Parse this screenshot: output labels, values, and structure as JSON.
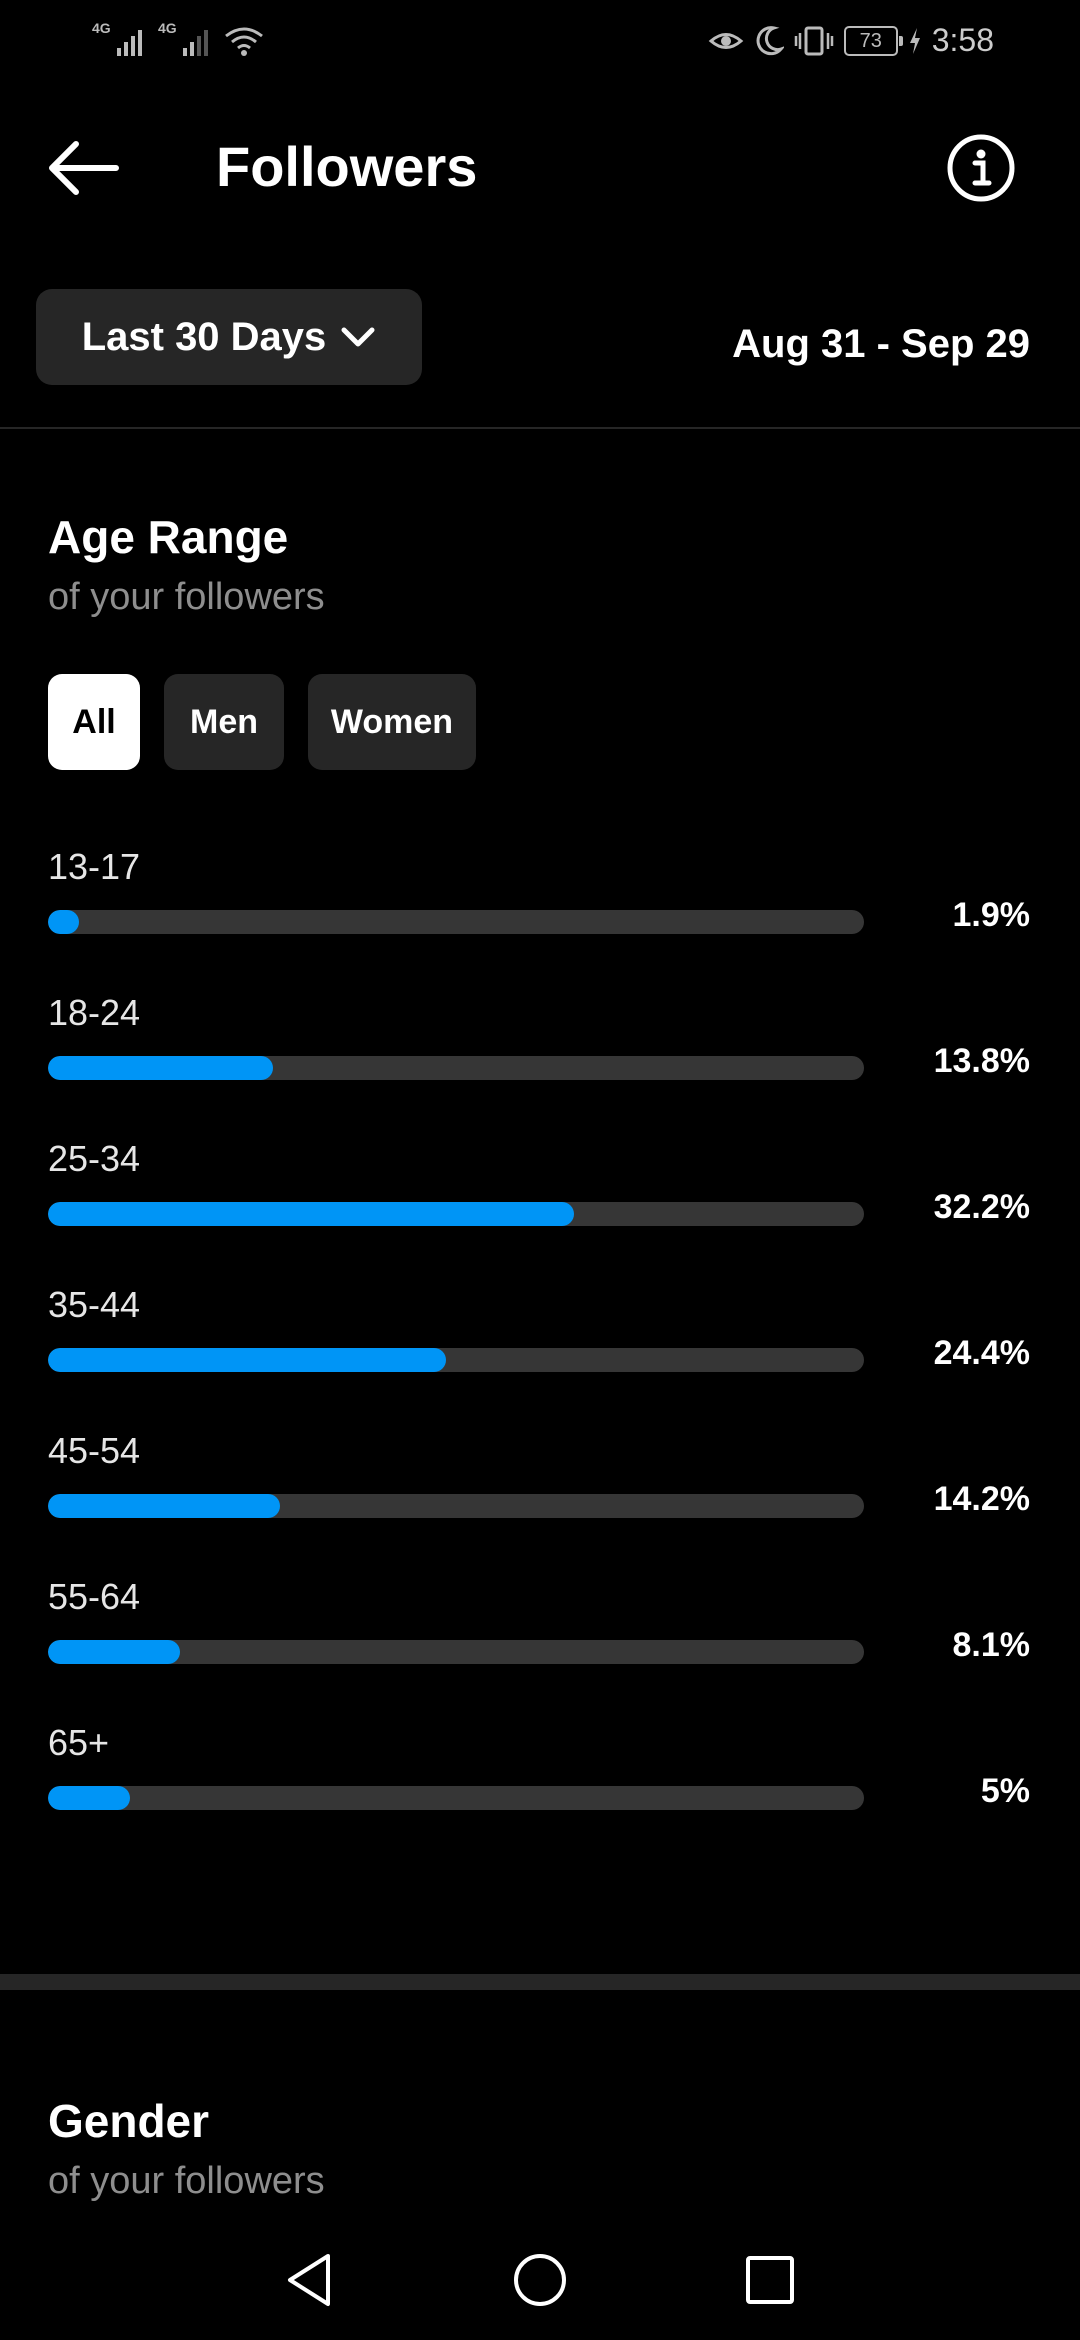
{
  "status_bar": {
    "signal1_label": "4G",
    "signal2_label": "4G",
    "battery": "73",
    "time": "3:58"
  },
  "header": {
    "title": "Followers",
    "back_icon": "arrow-left-icon",
    "info_icon": "info-circle-icon"
  },
  "filter": {
    "range_label": "Last 30 Days",
    "date_range": "Aug 31 - Sep 29"
  },
  "age_section": {
    "title": "Age Range",
    "subtitle": "of your followers",
    "tabs": [
      {
        "label": "All",
        "active": true
      },
      {
        "label": "Men",
        "active": false
      },
      {
        "label": "Women",
        "active": false
      }
    ],
    "rows": [
      {
        "label": "13-17",
        "value": "1.9%",
        "fill_fraction": 0.019
      },
      {
        "label": "18-24",
        "value": "13.8%",
        "fill_fraction": 0.138
      },
      {
        "label": "25-34",
        "value": "32.2%",
        "fill_fraction": 0.322
      },
      {
        "label": "35-44",
        "value": "24.4%",
        "fill_fraction": 0.244
      },
      {
        "label": "45-54",
        "value": "14.2%",
        "fill_fraction": 0.142
      },
      {
        "label": "55-64",
        "value": "8.1%",
        "fill_fraction": 0.081
      },
      {
        "label": "65+",
        "value": "5%",
        "fill_fraction": 0.05
      }
    ]
  },
  "gender_section": {
    "title": "Gender",
    "subtitle": "of your followers"
  },
  "colors": {
    "background": "#000000",
    "bar_fill": "#0095f6",
    "bar_track": "#363636",
    "chip_bg": "#262626",
    "subtle_text": "#8e8e8e"
  }
}
